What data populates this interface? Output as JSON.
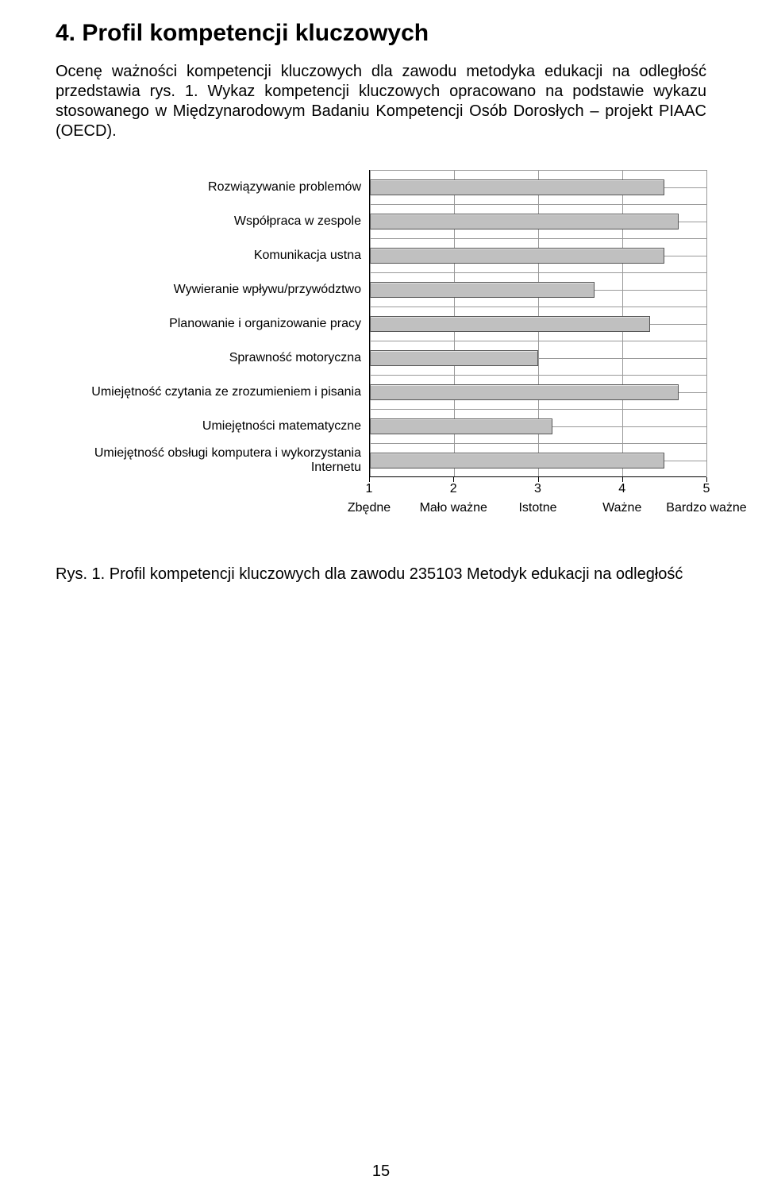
{
  "section": {
    "title": "4. Profil kompetencji kluczowych",
    "intro": "Ocenę ważności kompetencji kluczowych dla zawodu metodyka edukacji na odległość przedstawia rys. 1. Wykaz kompetencji kluczowych opracowano na podstawie wykazu stosowanego w Międzynarodowym Badaniu Kompetencji Osób Dorosłych – projekt PIAAC (OECD)."
  },
  "chart": {
    "type": "bar-horizontal",
    "xlim": [
      1,
      5
    ],
    "xtick_values": [
      1,
      2,
      3,
      4,
      5
    ],
    "xtick_value_labels": [
      "1",
      "2",
      "3",
      "4",
      "5"
    ],
    "xtick_cat_labels": [
      "Zbędne",
      "Mało ważne",
      "Istotne",
      "Ważne",
      "Bardzo ważne"
    ],
    "bar_fill": "#c0c0c0",
    "bar_border": "#555555",
    "grid_color": "#999999",
    "axis_color": "#000000",
    "background_color": "#ffffff",
    "label_fontsize": 16,
    "items": [
      {
        "label": "Rozwiązywanie problemów",
        "value": 4.5
      },
      {
        "label": "Współpraca w zespole",
        "value": 4.67
      },
      {
        "label": "Komunikacja ustna",
        "value": 4.5
      },
      {
        "label": "Wywieranie wpływu/przywództwo",
        "value": 3.67
      },
      {
        "label": "Planowanie i organizowanie pracy",
        "value": 4.33
      },
      {
        "label": "Sprawność motoryczna",
        "value": 3.0
      },
      {
        "label": "Umiejętność czytania ze zrozumieniem i pisania",
        "value": 4.67
      },
      {
        "label": "Umiejętności matematyczne",
        "value": 3.17
      },
      {
        "label": "Umiejętność obsługi komputera i wykorzystania Internetu",
        "value": 4.5
      }
    ]
  },
  "caption": "Rys. 1. Profil kompetencji kluczowych dla zawodu 235103 Metodyk edukacji na odległość",
  "page_number": "15"
}
